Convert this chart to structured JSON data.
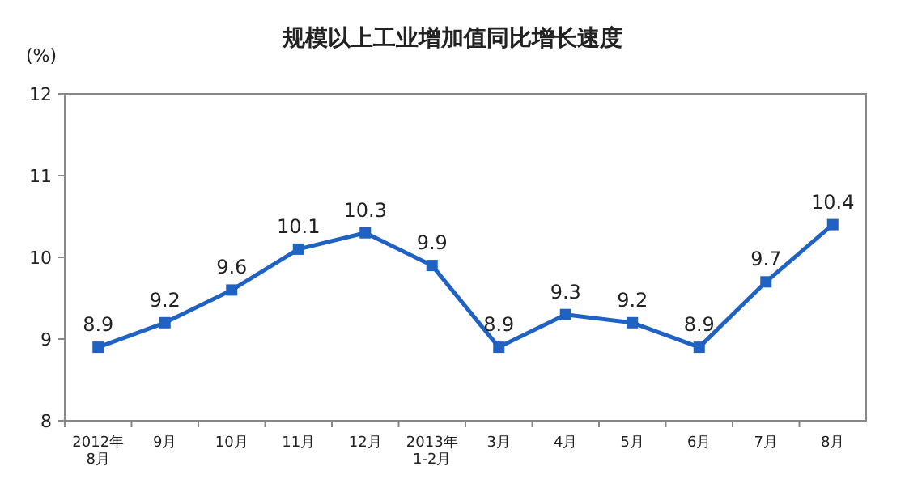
{
  "chart_data": {
    "type": "line",
    "title": "规模以上工业增加值同比增长速度",
    "ylabel": "(%)",
    "categories": [
      "2012年\n8月",
      "9月",
      "10月",
      "11月",
      "12月",
      "2013年\n1-2月",
      "3月",
      "4月",
      "5月",
      "6月",
      "7月",
      "8月"
    ],
    "series": [
      {
        "color": "#1f62c2",
        "values": [
          8.9,
          9.2,
          9.6,
          10.1,
          10.3,
          9.9,
          8.9,
          9.3,
          9.2,
          8.9,
          9.7,
          10.4
        ]
      }
    ],
    "ylim": [
      8,
      12
    ],
    "yticks": [
      8,
      9,
      10,
      11,
      12
    ],
    "grid": false,
    "marker": "square",
    "line_style": "solid",
    "data_labels": true
  }
}
